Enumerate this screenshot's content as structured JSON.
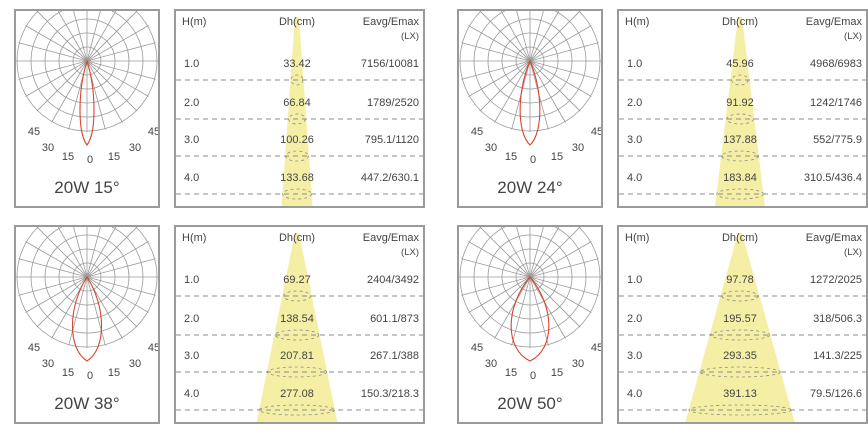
{
  "panels": [
    {
      "label": "20W 15°",
      "beam_angle_deg": 15,
      "header": {
        "h": "H(m)",
        "dh": "Dh(cm)",
        "eavg": "Eavg/Emax",
        "unit": "(LX)"
      },
      "angle_labels": {
        "left45": "45",
        "left30": "30",
        "left15": "15",
        "zero": "0",
        "right15": "15",
        "right30": "30",
        "right45": "45"
      },
      "rows": [
        {
          "h": "1.0",
          "dh": "33.42",
          "e": "7156/10081"
        },
        {
          "h": "2.0",
          "dh": "66.84",
          "e": "1789/2520"
        },
        {
          "h": "3.0",
          "dh": "100.26",
          "e": "795.1/1120"
        },
        {
          "h": "4.0",
          "dh": "133.68",
          "e": "447.2/630.1"
        }
      ]
    },
    {
      "label": "20W 24°",
      "beam_angle_deg": 24,
      "header": {
        "h": "H(m)",
        "dh": "Dh(cm)",
        "eavg": "Eavg/Emax",
        "unit": "(LX)"
      },
      "angle_labels": {
        "left45": "45",
        "left30": "30",
        "left15": "15",
        "zero": "0",
        "right15": "15",
        "right30": "30",
        "right45": "45"
      },
      "rows": [
        {
          "h": "1.0",
          "dh": "45.96",
          "e": "4968/6983"
        },
        {
          "h": "2.0",
          "dh": "91.92",
          "e": "1242/1746"
        },
        {
          "h": "3.0",
          "dh": "137.88",
          "e": "552/775.9"
        },
        {
          "h": "4.0",
          "dh": "183.84",
          "e": "310.5/436.4"
        }
      ]
    },
    {
      "label": "20W 38°",
      "beam_angle_deg": 38,
      "header": {
        "h": "H(m)",
        "dh": "Dh(cm)",
        "eavg": "Eavg/Emax",
        "unit": "(LX)"
      },
      "angle_labels": {
        "left45": "45",
        "left30": "30",
        "left15": "15",
        "zero": "0",
        "right15": "15",
        "right30": "30",
        "right45": "45"
      },
      "rows": [
        {
          "h": "1.0",
          "dh": "69.27",
          "e": "2404/3492"
        },
        {
          "h": "2.0",
          "dh": "138.54",
          "e": "601.1/873"
        },
        {
          "h": "3.0",
          "dh": "207.81",
          "e": "267.1/388"
        },
        {
          "h": "4.0",
          "dh": "277.08",
          "e": "150.3/218.3"
        }
      ]
    },
    {
      "label": "20W 50°",
      "beam_angle_deg": 50,
      "header": {
        "h": "H(m)",
        "dh": "Dh(cm)",
        "eavg": "Eavg/Emax",
        "unit": "(LX)"
      },
      "angle_labels": {
        "left45": "45",
        "left30": "30",
        "left15": "15",
        "zero": "0",
        "right15": "15",
        "right30": "30",
        "right45": "45"
      },
      "rows": [
        {
          "h": "1.0",
          "dh": "97.78",
          "e": "1272/2025"
        },
        {
          "h": "2.0",
          "dh": "195.57",
          "e": "318/506.3"
        },
        {
          "h": "3.0",
          "dh": "293.35",
          "e": "141.3/225"
        },
        {
          "h": "4.0",
          "dh": "391.13",
          "e": "79.5/126.6"
        }
      ]
    }
  ],
  "colors": {
    "beam": "#f5efa6",
    "curve": "#d9442b",
    "grid": "#9a9a9a",
    "dash": "#8c8c8c",
    "border": "#9a9a9a"
  }
}
